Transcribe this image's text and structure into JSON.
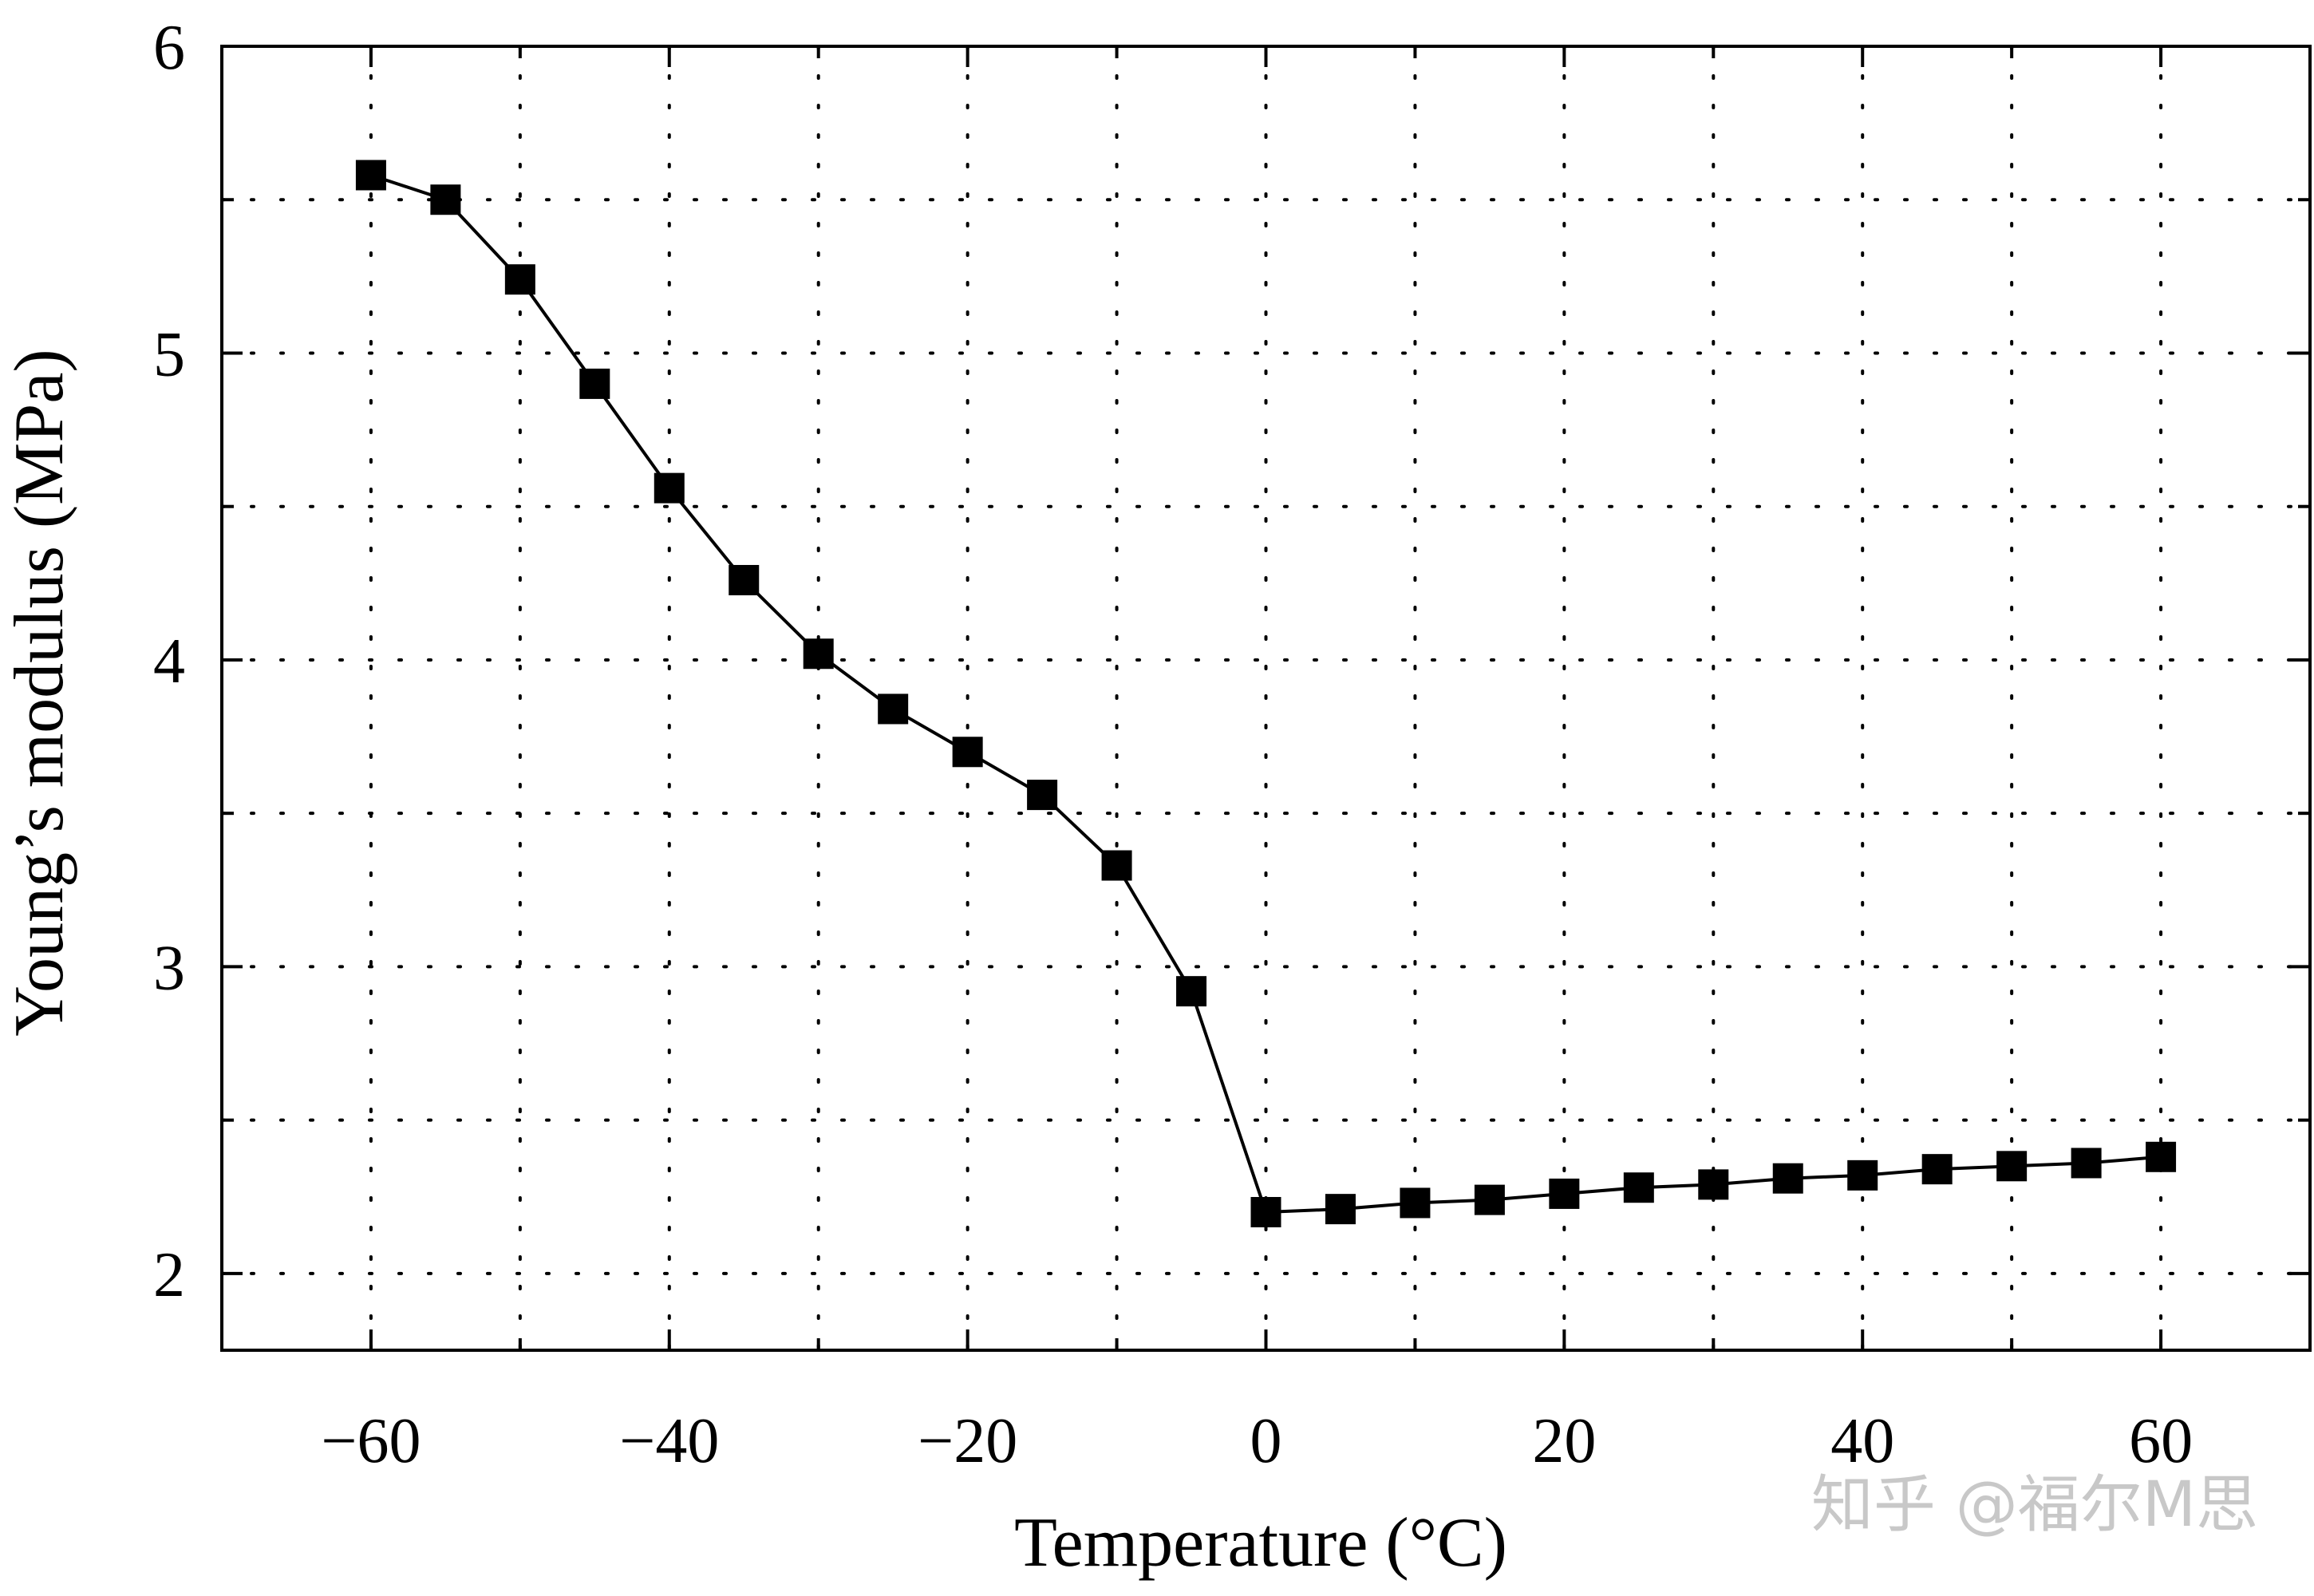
{
  "chart_data": {
    "type": "line",
    "title": "",
    "xlabel": "Temperature (°C)",
    "ylabel": "Young’s modulus (MPa)",
    "xlim": [
      -70,
      70
    ],
    "ylim": [
      1.75,
      6
    ],
    "x_ticks": [
      -60,
      -40,
      -20,
      0,
      20,
      40,
      60
    ],
    "x_tick_labels": [
      "−60",
      "−40",
      "−20",
      "0",
      "20",
      "40",
      "60"
    ],
    "y_ticks": [
      2,
      3,
      4,
      5,
      6
    ],
    "y_tick_labels": [
      "2",
      "3",
      "4",
      "5",
      "6"
    ],
    "grid": true,
    "grid_style": "dotted",
    "marker": "square",
    "line_color": "#000000",
    "marker_color": "#000000",
    "series": [
      {
        "x": [
          -60,
          -55,
          -50,
          -45,
          -40,
          -35,
          -30,
          -25,
          -20,
          -15,
          -10,
          -5,
          0,
          5,
          10,
          15,
          20,
          25,
          30,
          35,
          40,
          45,
          50,
          55,
          60
        ],
        "y": [
          5.58,
          5.5,
          5.24,
          4.9,
          4.56,
          4.26,
          4.02,
          3.84,
          3.7,
          3.56,
          3.33,
          2.92,
          2.2,
          2.21,
          2.23,
          2.24,
          2.26,
          2.28,
          2.29,
          2.31,
          2.32,
          2.34,
          2.35,
          2.36,
          2.38
        ]
      }
    ]
  },
  "watermark": {
    "text": "知乎 @福尔M思"
  }
}
